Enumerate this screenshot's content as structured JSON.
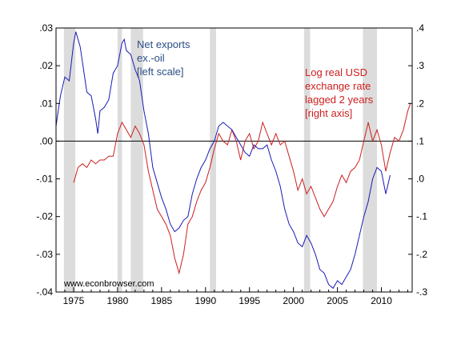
{
  "chart_data": {
    "type": "line",
    "title": "",
    "xlabel": "",
    "x_ticks": [
      "1975",
      "1980",
      "1985",
      "1990",
      "1995",
      "2000",
      "2005",
      "2010"
    ],
    "x_range": [
      1973,
      2013.5
    ],
    "left_axis": {
      "ylim": [
        -0.04,
        0.03
      ],
      "ticks": [
        ".03",
        ".02",
        ".01",
        ".00",
        "-.01",
        "-.02",
        "-.03",
        "-.04"
      ]
    },
    "right_axis": {
      "ylim": [
        -0.3,
        0.4
      ],
      "ticks": [
        ".4",
        ".3",
        ".2",
        ".1",
        ".0",
        "-.1",
        "-.2",
        "-.3"
      ]
    },
    "recessions": [
      [
        1973.9,
        1975.2
      ],
      [
        1980.0,
        1980.5
      ],
      [
        1981.5,
        1982.9
      ],
      [
        1990.5,
        1991.2
      ],
      [
        2001.2,
        2001.9
      ],
      [
        2007.9,
        2009.5
      ]
    ],
    "colors": {
      "net_exports": "#1a1ab8",
      "usd": "#cc1f1f",
      "recession": "#dcdcdc",
      "annotation_blue": "#2b4f84",
      "annotation_red": "#cc1f1f"
    },
    "annotations": {
      "net_exports": [
        "Net exports",
        "ex.-oil",
        "[left scale]"
      ],
      "usd": [
        "Log real USD",
        "exchange rate",
        "lagged 2 years",
        "[right axis]"
      ]
    },
    "watermark": "www.econbrowser.com",
    "series": [
      {
        "key": "net_exports",
        "axis": "left",
        "x": [
          1973.0,
          1973.5,
          1974.0,
          1974.5,
          1975.0,
          1975.25,
          1975.5,
          1975.75,
          1976.0,
          1976.5,
          1977.0,
          1977.5,
          1977.75,
          1978.0,
          1978.5,
          1979.0,
          1979.5,
          1980.0,
          1980.5,
          1980.75,
          1981.0,
          1981.5,
          1982.0,
          1982.5,
          1983.0,
          1983.5,
          1984.0,
          1984.5,
          1985.0,
          1985.5,
          1986.0,
          1986.5,
          1987.0,
          1987.5,
          1988.0,
          1988.5,
          1989.0,
          1989.5,
          1990.0,
          1990.5,
          1991.0,
          1991.5,
          1992.0,
          1992.5,
          1993.0,
          1993.5,
          1994.0,
          1994.5,
          1995.0,
          1995.5,
          1996.0,
          1996.5,
          1997.0,
          1997.5,
          1998.0,
          1998.5,
          1999.0,
          1999.5,
          2000.0,
          2000.5,
          2001.0,
          2001.5,
          2002.0,
          2002.5,
          2003.0,
          2003.5,
          2004.0,
          2004.5,
          2005.0,
          2005.5,
          2006.0,
          2006.5,
          2007.0,
          2007.5,
          2008.0,
          2008.5,
          2009.0,
          2009.5,
          2010.0,
          2010.5,
          2011.0
        ],
        "values": [
          0.004,
          0.012,
          0.017,
          0.016,
          0.026,
          0.029,
          0.027,
          0.025,
          0.021,
          0.013,
          0.012,
          0.006,
          0.002,
          0.008,
          0.009,
          0.011,
          0.018,
          0.02,
          0.026,
          0.027,
          0.024,
          0.023,
          0.019,
          0.016,
          0.008,
          0.002,
          -0.007,
          -0.011,
          -0.015,
          -0.018,
          -0.022,
          -0.024,
          -0.023,
          -0.021,
          -0.02,
          -0.014,
          -0.01,
          -0.007,
          -0.005,
          -0.002,
          0.0,
          0.004,
          0.005,
          0.004,
          0.003,
          0.001,
          -0.001,
          -0.003,
          -0.004,
          -0.001,
          -0.002,
          -0.002,
          -0.001,
          -0.005,
          -0.008,
          -0.012,
          -0.018,
          -0.022,
          -0.024,
          -0.027,
          -0.028,
          -0.025,
          -0.027,
          -0.03,
          -0.034,
          -0.035,
          -0.038,
          -0.039,
          -0.037,
          -0.038,
          -0.036,
          -0.034,
          -0.03,
          -0.025,
          -0.02,
          -0.016,
          -0.01,
          -0.007,
          -0.008,
          -0.014,
          -0.009
        ]
      },
      {
        "key": "usd",
        "axis": "right",
        "x": [
          1975.0,
          1975.5,
          1976.0,
          1976.5,
          1977.0,
          1977.5,
          1978.0,
          1978.5,
          1979.0,
          1979.5,
          1980.0,
          1980.5,
          1981.0,
          1981.5,
          1982.0,
          1982.5,
          1983.0,
          1983.5,
          1984.0,
          1984.5,
          1985.0,
          1985.5,
          1986.0,
          1986.5,
          1987.0,
          1987.5,
          1988.0,
          1988.5,
          1989.0,
          1989.5,
          1990.0,
          1990.5,
          1991.0,
          1991.5,
          1992.0,
          1992.5,
          1993.0,
          1993.5,
          1994.0,
          1994.5,
          1995.0,
          1995.5,
          1996.0,
          1996.5,
          1997.0,
          1997.5,
          1998.0,
          1998.5,
          1999.0,
          1999.5,
          2000.0,
          2000.5,
          2001.0,
          2001.5,
          2002.0,
          2002.5,
          2003.0,
          2003.5,
          2004.0,
          2004.5,
          2005.0,
          2005.5,
          2006.0,
          2006.5,
          2007.0,
          2007.5,
          2008.0,
          2008.5,
          2009.0,
          2009.5,
          2010.0,
          2010.5,
          2011.0,
          2011.5,
          2012.0,
          2012.5,
          2013.0,
          2013.3
        ],
        "values": [
          -0.01,
          0.03,
          0.04,
          0.03,
          0.05,
          0.04,
          0.05,
          0.05,
          0.06,
          0.06,
          0.12,
          0.15,
          0.13,
          0.11,
          0.14,
          0.12,
          0.09,
          0.02,
          -0.03,
          -0.08,
          -0.1,
          -0.12,
          -0.15,
          -0.21,
          -0.25,
          -0.2,
          -0.12,
          -0.1,
          -0.06,
          -0.03,
          -0.01,
          0.03,
          0.08,
          0.12,
          0.1,
          0.09,
          0.13,
          0.1,
          0.05,
          0.1,
          0.12,
          0.08,
          0.1,
          0.15,
          0.12,
          0.09,
          0.12,
          0.09,
          0.1,
          0.06,
          0.02,
          -0.03,
          0.0,
          -0.04,
          -0.02,
          -0.05,
          -0.08,
          -0.1,
          -0.08,
          -0.06,
          -0.02,
          0.01,
          -0.01,
          0.02,
          0.03,
          0.05,
          0.1,
          0.15,
          0.1,
          0.13,
          0.09,
          0.02,
          0.07,
          0.11,
          0.1,
          0.13,
          0.18,
          0.2
        ]
      }
    ]
  }
}
